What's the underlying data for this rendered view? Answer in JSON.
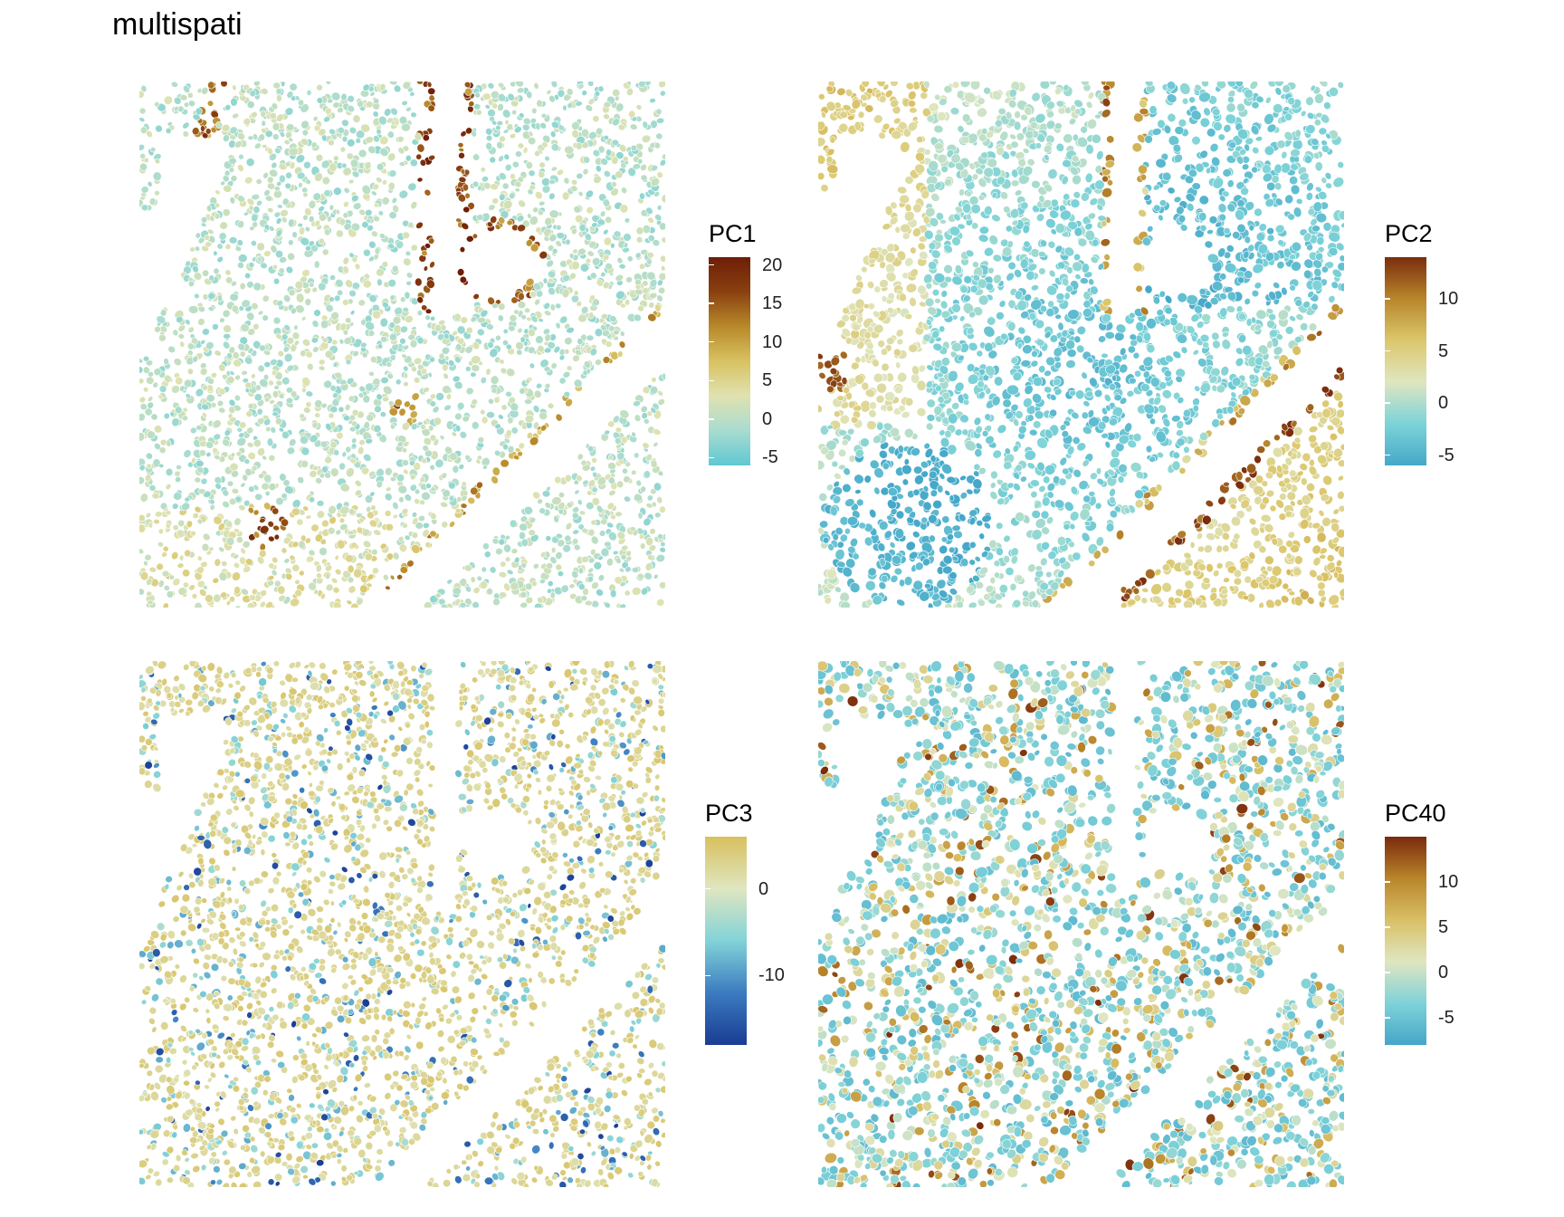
{
  "title": "multispati",
  "chart_data": [
    {
      "type": "spatial-scatter",
      "legend_title": "PC1",
      "ticks": [
        20,
        15,
        10,
        5,
        0,
        -5
      ],
      "range": [
        -6,
        21
      ],
      "colors": [
        "#5fc8d2",
        "#a8dcd0",
        "#e0e2b0",
        "#d8c262",
        "#b8892a",
        "#8a4010",
        "#6e1e06"
      ],
      "legend_position": "right"
    },
    {
      "type": "spatial-scatter",
      "legend_title": "PC2",
      "ticks": [
        10,
        5,
        0,
        -5
      ],
      "range": [
        -6,
        14
      ],
      "colors": [
        "#45a8c9",
        "#7dd3d8",
        "#dfe6c0",
        "#dcc76c",
        "#b8862b",
        "#7b2d0d"
      ],
      "legend_position": "right"
    },
    {
      "type": "spatial-scatter",
      "legend_title": "PC3",
      "ticks": [
        0,
        -10
      ],
      "range": [
        -18,
        6
      ],
      "colors": [
        "#1a3c94",
        "#3b7bbf",
        "#82d3d8",
        "#dfe6c0",
        "#d8c05e"
      ],
      "legend_position": "right"
    },
    {
      "type": "spatial-scatter",
      "legend_title": "PC40",
      "ticks": [
        10,
        5,
        0,
        -5
      ],
      "range": [
        -8,
        15
      ],
      "colors": [
        "#45a6c9",
        "#7fd2d8",
        "#dfe6c0",
        "#d9c066",
        "#b9852a",
        "#7b2a0b"
      ],
      "legend_position": "right"
    }
  ]
}
